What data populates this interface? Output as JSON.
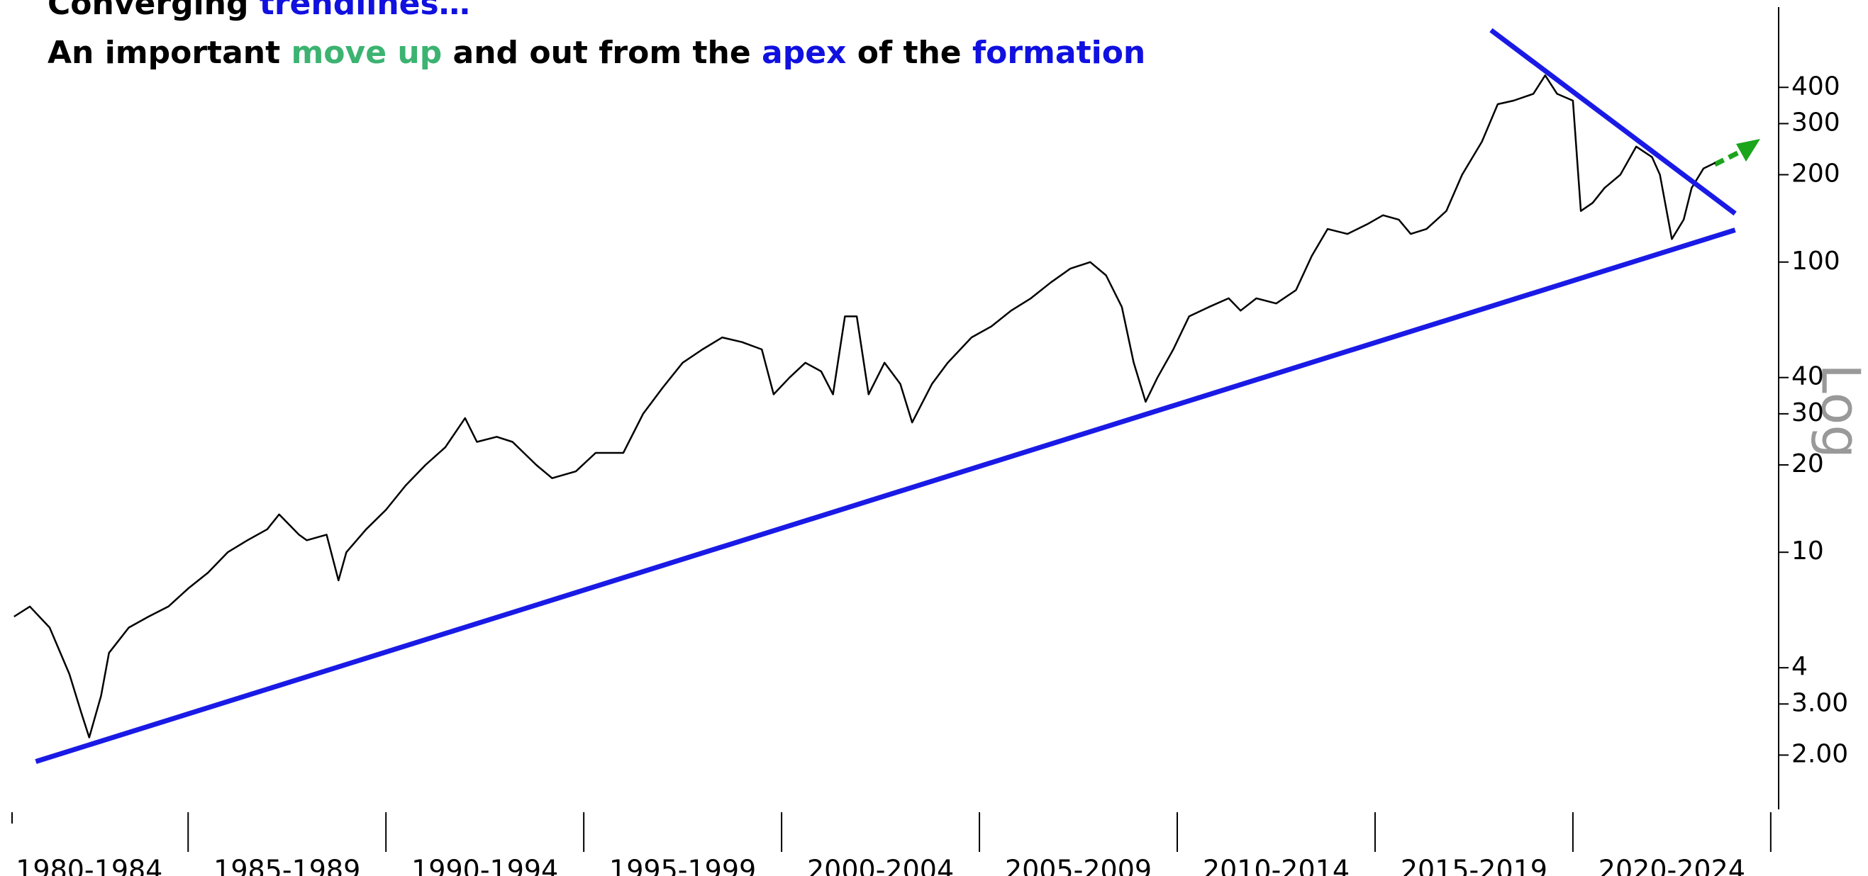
{
  "chart_data": {
    "type": "line",
    "title_lines": [
      [
        {
          "text": "Converging ",
          "color": "#000000"
        },
        {
          "text": "trendlines…",
          "color": "#1010e0"
        }
      ],
      [
        {
          "text": "An important ",
          "color": "#000000"
        },
        {
          "text": "move up",
          "color": "#3cb371"
        },
        {
          "text": " and out from the ",
          "color": "#000000"
        },
        {
          "text": "apex",
          "color": "#1010e0"
        },
        {
          "text": " of the ",
          "color": "#000000"
        },
        {
          "text": "formation",
          "color": "#1010e0"
        }
      ]
    ],
    "log_label": "Log",
    "log_scale": true,
    "categories": [
      "1980-1984",
      "1985-1989",
      "1990-1994",
      "1995-1999",
      "2000-2004",
      "2005-2009",
      "2010-2014",
      "2015-2019",
      "2020-2024"
    ],
    "xlim": [
      1980.55,
      2025.2
    ],
    "xticks": [
      1985,
      1990,
      1995,
      2000,
      2005,
      2010,
      2015,
      2020,
      2025
    ],
    "ylim": [
      1.3,
      800
    ],
    "yticks": [
      400,
      300,
      200,
      100,
      40,
      30,
      20,
      10,
      4,
      {
        "value": 3,
        "label": "3.00"
      },
      {
        "value": 2,
        "label": "2.00"
      }
    ],
    "series": [
      {
        "color": "#000000",
        "width": 2.5,
        "x": [
          1980.6,
          1981,
          1981.5,
          1982,
          1982.3,
          1982.5,
          1982.8,
          1983,
          1983.5,
          1984,
          1984.5,
          1985,
          1985.5,
          1986,
          1986.5,
          1987,
          1987.3,
          1987.8,
          1988,
          1988.5,
          1988.8,
          1989,
          1989.5,
          1990,
          1990.5,
          1991,
          1991.5,
          1992,
          1992.3,
          1992.8,
          1993.2,
          1993.8,
          1994.2,
          1994.8,
          1995.3,
          1996,
          1996.5,
          1997,
          1997.5,
          1998,
          1998.5,
          1999,
          1999.5,
          1999.8,
          2000.2,
          2000.6,
          2001,
          2001.3,
          2001.6,
          2001.9,
          2002.2,
          2002.6,
          2003,
          2003.3,
          2003.8,
          2004.2,
          2004.8,
          2005.3,
          2005.8,
          2006.3,
          2006.8,
          2007.3,
          2007.8,
          2008.2,
          2008.6,
          2008.9,
          2009.2,
          2009.5,
          2009.9,
          2010.3,
          2010.8,
          2011.3,
          2011.6,
          2012,
          2012.5,
          2013,
          2013.4,
          2013.8,
          2014.3,
          2014.8,
          2015.2,
          2015.6,
          2015.9,
          2016.3,
          2016.8,
          2017.2,
          2017.7,
          2018.1,
          2018.5,
          2019,
          2019.3,
          2019.6,
          2020,
          2020.2,
          2020.5,
          2020.8,
          2021.2,
          2021.6,
          2022,
          2022.2,
          2022.5,
          2022.8,
          2023,
          2023.3,
          2023.6
        ],
        "values": [
          6.0,
          6.5,
          5.5,
          3.8,
          2.8,
          2.3,
          3.2,
          4.5,
          5.5,
          6.0,
          6.5,
          7.5,
          8.5,
          10,
          11,
          12,
          13.5,
          11.5,
          11,
          11.5,
          8,
          10,
          12,
          14,
          17,
          20,
          23,
          29,
          24,
          25,
          24,
          20,
          18,
          19,
          22,
          22,
          30,
          37,
          45,
          50,
          55,
          53,
          50,
          35,
          40,
          45,
          42,
          35,
          65,
          65,
          35,
          45,
          38,
          28,
          38,
          45,
          55,
          60,
          68,
          75,
          85,
          95,
          100,
          90,
          70,
          45,
          33,
          40,
          50,
          65,
          70,
          75,
          68,
          75,
          72,
          80,
          105,
          130,
          125,
          135,
          145,
          140,
          125,
          130,
          150,
          200,
          260,
          350,
          360,
          380,
          440,
          380,
          360,
          150,
          160,
          180,
          200,
          250,
          230,
          200,
          120,
          140,
          180,
          210,
          220
        ]
      },
      {
        "color": "#1a1ae6",
        "width": 7,
        "x": [
          1981.15,
          2024.1
        ],
        "values": [
          1.9,
          129
        ]
      },
      {
        "color": "#1a1ae6",
        "width": 7,
        "x": [
          2017.93,
          2024.1
        ],
        "values": [
          630,
          147
        ]
      }
    ]
  }
}
